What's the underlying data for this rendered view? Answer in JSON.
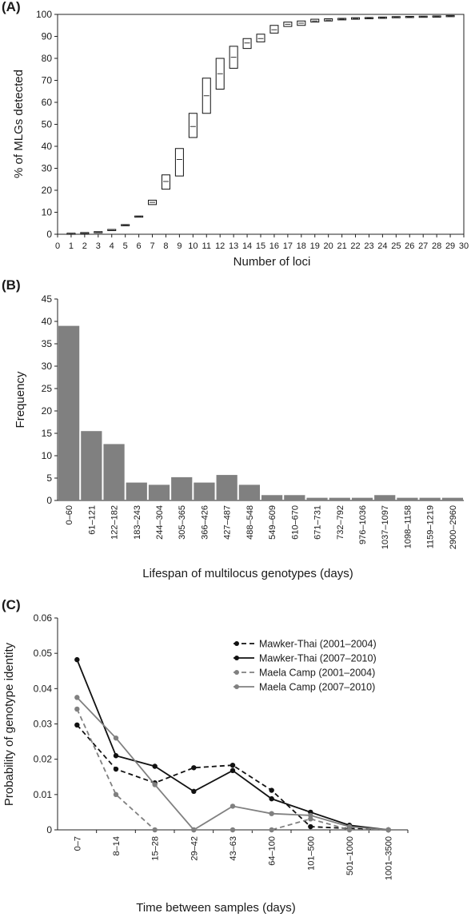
{
  "chart_data": [
    {
      "id": "A",
      "panel_label": "(A)",
      "type": "box",
      "xlabel": "Number of loci",
      "ylabel": "% of MLGs detected",
      "xlim": [
        0,
        30
      ],
      "ylim": [
        0,
        100
      ],
      "xticks": [
        0,
        1,
        2,
        3,
        4,
        5,
        6,
        7,
        8,
        9,
        10,
        11,
        12,
        13,
        14,
        15,
        16,
        17,
        18,
        19,
        20,
        21,
        22,
        23,
        24,
        25,
        26,
        27,
        28,
        29,
        30
      ],
      "yticks": [
        0,
        10,
        20,
        30,
        40,
        50,
        60,
        70,
        80,
        90,
        100
      ],
      "boxes": [
        {
          "x": 1,
          "low": 0.3,
          "median": 0.4,
          "high": 0.5
        },
        {
          "x": 2,
          "low": 0.6,
          "median": 0.7,
          "high": 0.8
        },
        {
          "x": 3,
          "low": 1.0,
          "median": 1.1,
          "high": 1.2
        },
        {
          "x": 4,
          "low": 2.0,
          "median": 2.1,
          "high": 2.2
        },
        {
          "x": 5,
          "low": 4.1,
          "median": 4.2,
          "high": 4.4
        },
        {
          "x": 6,
          "low": 8.0,
          "median": 8.1,
          "high": 8.3
        },
        {
          "x": 7,
          "low": 13.5,
          "median": 14.5,
          "high": 15.5
        },
        {
          "x": 8,
          "low": 20.5,
          "median": 24,
          "high": 27
        },
        {
          "x": 9,
          "low": 26.5,
          "median": 34,
          "high": 39
        },
        {
          "x": 10,
          "low": 44,
          "median": 49,
          "high": 55
        },
        {
          "x": 11,
          "low": 55,
          "median": 63,
          "high": 71
        },
        {
          "x": 12,
          "low": 66,
          "median": 73,
          "high": 80
        },
        {
          "x": 13,
          "low": 75.5,
          "median": 80.5,
          "high": 85.5
        },
        {
          "x": 14,
          "low": 84.5,
          "median": 87,
          "high": 89
        },
        {
          "x": 15,
          "low": 87.5,
          "median": 89,
          "high": 91
        },
        {
          "x": 16,
          "low": 91.5,
          "median": 93,
          "high": 95
        },
        {
          "x": 17,
          "low": 94.5,
          "median": 95.5,
          "high": 96.5
        },
        {
          "x": 18,
          "low": 95,
          "median": 96,
          "high": 97
        },
        {
          "x": 19,
          "low": 96.5,
          "median": 97,
          "high": 97.8
        },
        {
          "x": 20,
          "low": 97,
          "median": 97.4,
          "high": 98
        },
        {
          "x": 21,
          "low": 97.5,
          "median": 97.8,
          "high": 98.2
        },
        {
          "x": 22,
          "low": 97.8,
          "median": 98.1,
          "high": 98.5
        },
        {
          "x": 23,
          "low": 98,
          "median": 98.3,
          "high": 98.6
        },
        {
          "x": 24,
          "low": 98.2,
          "median": 98.5,
          "high": 98.8
        },
        {
          "x": 25,
          "low": 98.5,
          "median": 98.7,
          "high": 99
        },
        {
          "x": 26,
          "low": 98.7,
          "median": 98.9,
          "high": 99.1
        },
        {
          "x": 27,
          "low": 98.9,
          "median": 99,
          "high": 99.2
        },
        {
          "x": 28,
          "low": 99,
          "median": 99.1,
          "high": 99.3
        },
        {
          "x": 29,
          "low": 99.2,
          "median": 99.3,
          "high": 99.5
        }
      ]
    },
    {
      "id": "B",
      "panel_label": "(B)",
      "type": "bar",
      "xlabel": "Lifespan of multilocus genotypes (days)",
      "ylabel": "Frequency",
      "ylim": [
        0,
        45
      ],
      "yticks": [
        0,
        5,
        10,
        15,
        20,
        25,
        30,
        35,
        40,
        45
      ],
      "bar_color": "#808080",
      "categories": [
        "0–60",
        "61–121",
        "122–182",
        "183–243",
        "244–304",
        "305–365",
        "366–426",
        "427–487",
        "488–548",
        "549–609",
        "610–670",
        "671–731",
        "732–792",
        "976–1036",
        "1037–1097",
        "1098–1158",
        "1159–1219",
        "2900–2960"
      ],
      "values": [
        39,
        15.5,
        12.6,
        4,
        3.5,
        5.2,
        4,
        5.7,
        3.5,
        1.2,
        1.2,
        0.6,
        0.6,
        0.6,
        1.2,
        0.6,
        0.6,
        0.6
      ]
    },
    {
      "id": "C",
      "panel_label": "(C)",
      "type": "line",
      "xlabel": "Time between samples (days)",
      "ylabel": "Probability of genotype identity",
      "ylim": [
        0,
        0.06
      ],
      "yticks": [
        "0",
        "0.01",
        "0.02",
        "0.03",
        "0.04",
        "0.05",
        "0.06"
      ],
      "categories": [
        "0–7",
        "8–14",
        "15–28",
        "29–42",
        "43–63",
        "64–100",
        "101–500",
        "501–1000",
        "1001–3500"
      ],
      "series": [
        {
          "name": "Mawker-Thai (2001–2004)",
          "color": "#111111",
          "dashed": true,
          "values": [
            0.0297,
            0.0172,
            0.0133,
            0.0176,
            0.0183,
            0.0112,
            0.0009,
            0.0004,
            0
          ]
        },
        {
          "name": "Mawker-Thai (2007–2010)",
          "color": "#111111",
          "dashed": false,
          "values": [
            0.0482,
            0.021,
            0.018,
            0.0109,
            0.0168,
            0.0088,
            0.005,
            0.0013,
            0
          ]
        },
        {
          "name": "Maela Camp (2001–2004)",
          "color": "#808080",
          "dashed": true,
          "values": [
            0.0342,
            0.01,
            0,
            0,
            0,
            0,
            0.0031,
            0,
            0
          ]
        },
        {
          "name": "Maela Camp (2007–2010)",
          "color": "#808080",
          "dashed": false,
          "values": [
            0.0375,
            0.026,
            0.0128,
            0,
            0.0067,
            0.0046,
            0.0041,
            0.0009,
            0
          ]
        }
      ],
      "legend_position": "top-right"
    }
  ]
}
